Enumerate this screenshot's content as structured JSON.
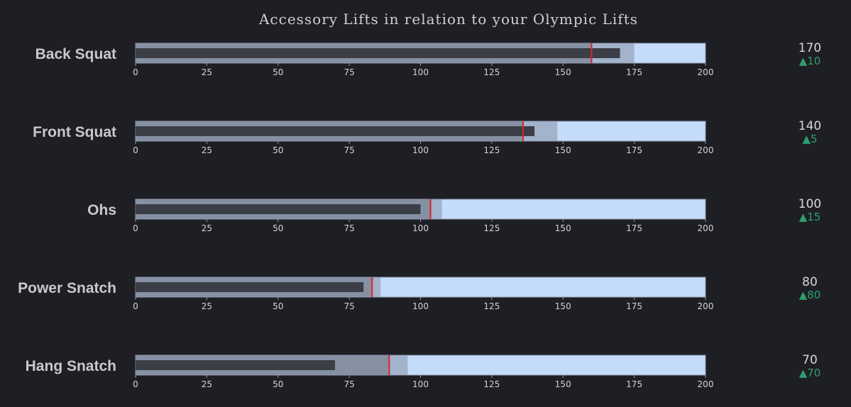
{
  "chart_data": {
    "type": "bullet",
    "title": "Accessory Lifts in relation to your Olympic Lifts",
    "axis": {
      "range": [
        0,
        200
      ],
      "ticks": [
        0,
        25,
        50,
        75,
        100,
        125,
        150,
        175,
        200
      ]
    },
    "colors": {
      "background": "#1e1f24",
      "band_outer": "#c4dcfa",
      "band_mid": "#a3b3cc",
      "band_inner": "#8590a3",
      "bar": "#3b3e46",
      "threshold": "#e0202a",
      "border": "#8f98ad",
      "delta": "#2e9e6e"
    },
    "series": [
      {
        "label": "Back Squat",
        "value": 170,
        "delta": "▲10",
        "threshold": 160,
        "ranges": [
          160,
          175,
          200
        ]
      },
      {
        "label": "Front Squat",
        "value": 140,
        "delta": "▲5",
        "threshold": 136,
        "ranges": [
          136,
          148,
          200
        ]
      },
      {
        "label": "Ohs",
        "value": 100,
        "delta": "▲15",
        "threshold": 103.5,
        "ranges": [
          103.5,
          107.5,
          200
        ]
      },
      {
        "label": "Power Snatch",
        "value": 80,
        "delta": "▲80",
        "threshold": 83,
        "ranges": [
          83,
          86,
          200
        ]
      },
      {
        "label": "Hang Snatch",
        "value": 70,
        "delta": "▲70",
        "threshold": 89,
        "ranges": [
          89,
          95.5,
          200
        ]
      }
    ]
  }
}
